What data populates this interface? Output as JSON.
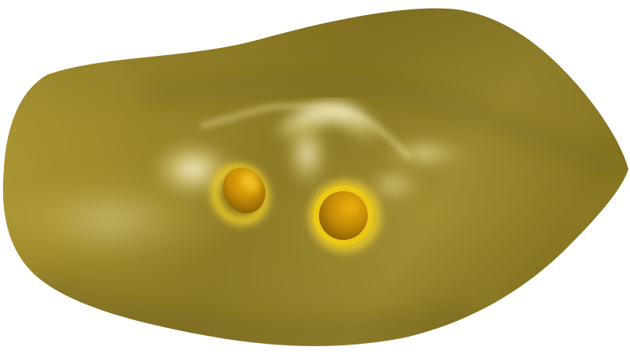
{
  "scene": {
    "subject": "golden-surface-with-two-holes",
    "background_color": "#ffffff",
    "colors": {
      "base": "#9e8a2c",
      "dark": "#7a6a1e",
      "highlight": "#f6efb8",
      "hole_rim": "#f2cf10",
      "hole_interior": "#b07c08"
    },
    "hole_count": 2
  }
}
